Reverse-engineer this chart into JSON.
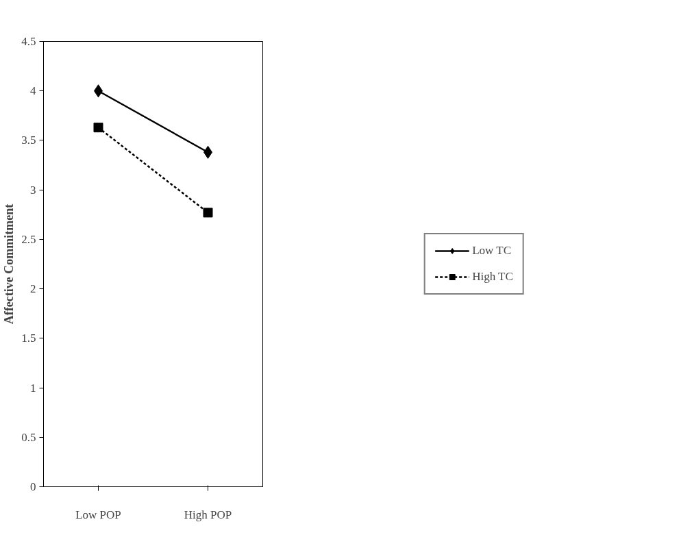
{
  "chart_data": {
    "type": "line",
    "ylabel": "Affective Commitment",
    "categories": [
      "Low POP",
      "High POP"
    ],
    "series": [
      {
        "name": "Low TC",
        "color": "#000000",
        "values": [
          4.0,
          3.38
        ],
        "marker": "diamond",
        "line_style": "solid"
      },
      {
        "name": "High TC",
        "color": "#000000",
        "values": [
          3.63,
          2.77
        ],
        "marker": "square",
        "line_style": "dashed"
      }
    ],
    "ylim": [
      0,
      4.5
    ],
    "yticks": [
      0,
      0.5,
      1,
      1.5,
      2,
      2.5,
      3,
      3.5,
      4,
      4.5
    ],
    "grid": false,
    "legend": "right"
  }
}
